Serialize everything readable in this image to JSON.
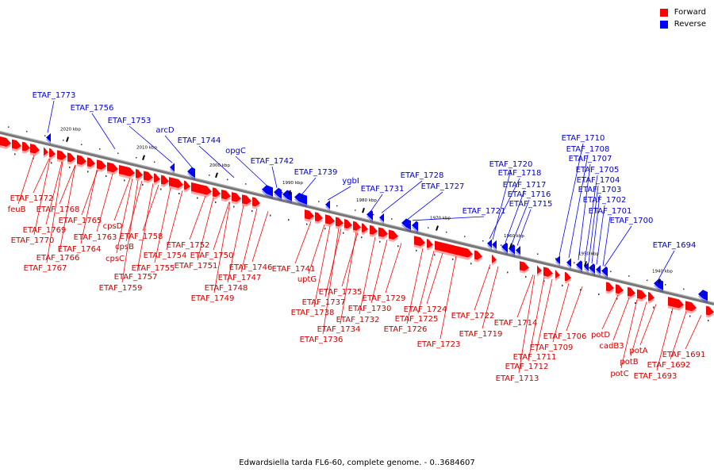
{
  "legend": {
    "forward_label": "Forward",
    "reverse_label": "Reverse",
    "forward_color": "#ff0000",
    "reverse_color": "#0000ff"
  },
  "caption": "Edwardsiella tarda FL6-60, complete genome. - 0..3684607",
  "ticks": [
    "2020 kbp",
    "2010 kbp",
    "2000 kbp",
    "1990 kbp",
    "1980 kbp",
    "1970 kbp",
    "1960 kbp",
    "1950 kbp",
    "1940 kbp"
  ],
  "forward_labels": [
    "ETAF_1772",
    "feuB",
    "ETAF_1768",
    "ETAF_1769",
    "ETAF_1765",
    "ETAF_1770",
    "cpsD",
    "ETAF_1763",
    "ETAF_1764",
    "cpsB",
    "ETAF_1758",
    "ETAF_1766",
    "cpsC",
    "ETAF_1754",
    "ETAF_1767",
    "ETAF_1755",
    "ETAF_1752",
    "ETAF_1757",
    "ETAF_1750",
    "ETAF_1751",
    "ETAF_1746",
    "ETAF_1759",
    "ETAF_1747",
    "ETAF_1748",
    "ETAF_1741",
    "ETAF_1749",
    "uptG",
    "ETAF_1735",
    "ETAF_1737",
    "ETAF_1729",
    "ETAF_1738",
    "ETAF_1730",
    "ETAF_1724",
    "ETAF_1732",
    "ETAF_1725",
    "ETAF_1722",
    "ETAF_1734",
    "ETAF_1726",
    "ETAF_1714",
    "ETAF_1736",
    "ETAF_1719",
    "ETAF_1723",
    "ETAF_1706",
    "potD",
    "ETAF_1709",
    "cadB3",
    "potA",
    "ETAF_1711",
    "ETAF_1691",
    "potB",
    "ETAF_1712",
    "ETAF_1692",
    "potC",
    "ETAF_1693",
    "ETAF_1713"
  ],
  "reverse_labels": [
    "ETAF_1773",
    "ETAF_1756",
    "ETAF_1753",
    "arcD",
    "ETAF_1744",
    "opgC",
    "ETAF_1742",
    "ETAF_1739",
    "ygbI",
    "ETAF_1731",
    "ETAF_1728",
    "ETAF_1727",
    "ETAF_1721",
    "ETAF_1720",
    "ETAF_1718",
    "ETAF_1717",
    "ETAF_1716",
    "ETAF_1715",
    "ETAF_1710",
    "ETAF_1708",
    "ETAF_1707",
    "ETAF_1705",
    "ETAF_1704",
    "ETAF_1703",
    "ETAF_1702",
    "ETAF_1701",
    "ETAF_1700",
    "ETAF_1694"
  ]
}
